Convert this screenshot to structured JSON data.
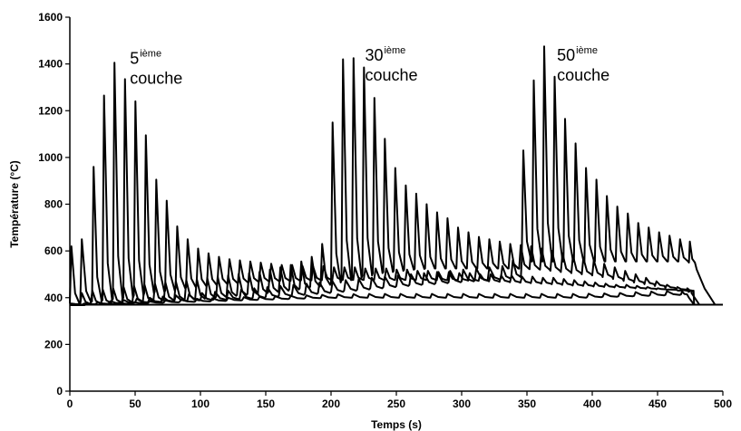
{
  "chart_data": {
    "type": "line",
    "title": "",
    "xlabel": "Temps (s)",
    "ylabel": "Température (°C)",
    "xlim": [
      0,
      500
    ],
    "ylim": [
      0,
      1600
    ],
    "x_ticks": [
      "0",
      "50",
      "100",
      "150",
      "200",
      "250",
      "300",
      "350",
      "400",
      "450",
      "500"
    ],
    "y_ticks": [
      "0",
      "200",
      "400",
      "600",
      "800",
      "1000",
      "1200",
      "1400",
      "1600"
    ],
    "grid": false,
    "legend": "none",
    "line_color": "#000000",
    "annotations": [
      {
        "num": "5",
        "sup": "ième",
        "word": "couche",
        "x": 46,
        "y": 1400
      },
      {
        "num": "30",
        "sup": "ième",
        "word": "couche",
        "x": 226,
        "y": 1415
      },
      {
        "num": "50",
        "sup": "ième",
        "word": "couche",
        "x": 373,
        "y": 1415
      }
    ],
    "series": [
      {
        "peaks": [
          [
            0,
            620,
            375
          ],
          [
            8,
            650,
            380
          ],
          [
            17,
            960,
            385
          ],
          [
            25,
            1265,
            390
          ],
          [
            33,
            1405,
            395
          ],
          [
            41,
            1335,
            400
          ],
          [
            49,
            1240,
            410
          ],
          [
            57,
            1095,
            420
          ],
          [
            65,
            905,
            425
          ],
          [
            73,
            815,
            430
          ],
          [
            81,
            705,
            440
          ],
          [
            89,
            650,
            445
          ],
          [
            97,
            610,
            450
          ],
          [
            105,
            590,
            455
          ],
          [
            113,
            575,
            460
          ],
          [
            121,
            565,
            462
          ],
          [
            129,
            560,
            465
          ],
          [
            137,
            555,
            468
          ],
          [
            145,
            550,
            470
          ],
          [
            153,
            545,
            470
          ],
          [
            161,
            540,
            472
          ],
          [
            169,
            540,
            472
          ],
          [
            177,
            535,
            474
          ],
          [
            185,
            535,
            474
          ],
          [
            193,
            535,
            475
          ],
          [
            201,
            530,
            475
          ],
          [
            209,
            530,
            476
          ],
          [
            217,
            530,
            476
          ],
          [
            225,
            525,
            476
          ],
          [
            233,
            525,
            476
          ],
          [
            241,
            525,
            476
          ],
          [
            249,
            520,
            476
          ],
          [
            257,
            520,
            476
          ],
          [
            265,
            515,
            476
          ],
          [
            273,
            515,
            476
          ],
          [
            281,
            510,
            475
          ],
          [
            289,
            510,
            475
          ],
          [
            297,
            505,
            474
          ],
          [
            305,
            505,
            473
          ],
          [
            313,
            500,
            472
          ],
          [
            321,
            500,
            470
          ],
          [
            329,
            495,
            468
          ],
          [
            337,
            495,
            466
          ],
          [
            345,
            490,
            464
          ],
          [
            353,
            490,
            462
          ],
          [
            361,
            485,
            460
          ],
          [
            369,
            485,
            458
          ],
          [
            377,
            480,
            455
          ],
          [
            385,
            475,
            452
          ],
          [
            393,
            470,
            450
          ],
          [
            401,
            465,
            448
          ],
          [
            409,
            460,
            446
          ],
          [
            417,
            455,
            444
          ],
          [
            425,
            455,
            442
          ],
          [
            433,
            450,
            440
          ],
          [
            441,
            445,
            438
          ],
          [
            449,
            440,
            436
          ],
          [
            457,
            435,
            434
          ],
          [
            465,
            430,
            432
          ],
          [
            473,
            425,
            430
          ]
        ],
        "end": [
          [
            478,
            370
          ]
        ]
      },
      {
        "peaks": [
          [
            0,
            375,
            372
          ],
          [
            8,
            420,
            374
          ],
          [
            16,
            430,
            376
          ],
          [
            24,
            435,
            378
          ],
          [
            32,
            440,
            380
          ],
          [
            40,
            445,
            382
          ],
          [
            48,
            450,
            384
          ],
          [
            56,
            455,
            386
          ],
          [
            64,
            460,
            388
          ],
          [
            72,
            465,
            390
          ],
          [
            80,
            470,
            392
          ],
          [
            88,
            475,
            394
          ],
          [
            96,
            480,
            396
          ],
          [
            104,
            485,
            400
          ],
          [
            112,
            490,
            404
          ],
          [
            120,
            495,
            408
          ],
          [
            128,
            500,
            412
          ],
          [
            136,
            505,
            416
          ],
          [
            144,
            510,
            420
          ],
          [
            152,
            520,
            425
          ],
          [
            160,
            530,
            430
          ],
          [
            168,
            540,
            435
          ],
          [
            176,
            555,
            440
          ],
          [
            184,
            575,
            448
          ],
          [
            192,
            630,
            455
          ],
          [
            200,
            1150,
            465
          ],
          [
            208,
            1420,
            475
          ],
          [
            216,
            1425,
            485
          ],
          [
            224,
            1385,
            495
          ],
          [
            232,
            1255,
            505
          ],
          [
            240,
            1080,
            510
          ],
          [
            248,
            955,
            515
          ],
          [
            256,
            880,
            520
          ],
          [
            264,
            845,
            523
          ],
          [
            272,
            800,
            525
          ],
          [
            280,
            765,
            525
          ],
          [
            288,
            740,
            525
          ],
          [
            296,
            700,
            525
          ],
          [
            304,
            680,
            525
          ],
          [
            312,
            660,
            525
          ],
          [
            320,
            650,
            525
          ],
          [
            328,
            640,
            525
          ],
          [
            336,
            630,
            525
          ],
          [
            344,
            625,
            524
          ],
          [
            352,
            620,
            522
          ],
          [
            360,
            610,
            520
          ],
          [
            368,
            600,
            515
          ],
          [
            376,
            590,
            510
          ],
          [
            384,
            580,
            505
          ],
          [
            392,
            570,
            500
          ],
          [
            400,
            560,
            495
          ],
          [
            408,
            545,
            488
          ],
          [
            416,
            530,
            480
          ],
          [
            424,
            515,
            472
          ],
          [
            432,
            500,
            465
          ],
          [
            440,
            485,
            458
          ],
          [
            448,
            470,
            450
          ],
          [
            456,
            455,
            442
          ],
          [
            464,
            445,
            435
          ],
          [
            472,
            440,
            430
          ]
        ],
        "end": [
          [
            476,
            420
          ],
          [
            482,
            370
          ]
        ]
      },
      {
        "peaks": [
          [
            0,
            370,
            370
          ],
          [
            10,
            375,
            372
          ],
          [
            20,
            380,
            374
          ],
          [
            30,
            385,
            376
          ],
          [
            40,
            390,
            378
          ],
          [
            50,
            395,
            380
          ],
          [
            60,
            400,
            382
          ],
          [
            70,
            405,
            384
          ],
          [
            80,
            410,
            386
          ],
          [
            90,
            415,
            388
          ],
          [
            100,
            420,
            390
          ],
          [
            110,
            425,
            392
          ],
          [
            120,
            430,
            394
          ],
          [
            130,
            435,
            396
          ],
          [
            140,
            440,
            400
          ],
          [
            150,
            445,
            404
          ],
          [
            160,
            450,
            408
          ],
          [
            170,
            455,
            412
          ],
          [
            180,
            460,
            416
          ],
          [
            190,
            465,
            420
          ],
          [
            200,
            470,
            425
          ],
          [
            210,
            475,
            430
          ],
          [
            220,
            480,
            435
          ],
          [
            230,
            485,
            440
          ],
          [
            240,
            490,
            445
          ],
          [
            250,
            495,
            450
          ],
          [
            260,
            500,
            455
          ],
          [
            270,
            505,
            458
          ],
          [
            280,
            510,
            462
          ],
          [
            290,
            515,
            466
          ],
          [
            300,
            520,
            470
          ],
          [
            310,
            525,
            474
          ],
          [
            320,
            530,
            478
          ],
          [
            330,
            535,
            482
          ],
          [
            338,
            560,
            488
          ],
          [
            346,
            1030,
            555
          ],
          [
            354,
            1330,
            555
          ],
          [
            362,
            1475,
            555
          ],
          [
            370,
            1345,
            555
          ],
          [
            378,
            1165,
            555
          ],
          [
            386,
            1060,
            555
          ],
          [
            394,
            955,
            555
          ],
          [
            402,
            905,
            555
          ],
          [
            410,
            835,
            555
          ],
          [
            418,
            790,
            555
          ],
          [
            426,
            760,
            555
          ],
          [
            434,
            720,
            555
          ],
          [
            442,
            700,
            555
          ],
          [
            450,
            680,
            555
          ],
          [
            458,
            665,
            555
          ],
          [
            466,
            650,
            555
          ],
          [
            474,
            640,
            550
          ]
        ],
        "end": [
          [
            480,
            520
          ],
          [
            486,
            440
          ],
          [
            494,
            370
          ]
        ]
      },
      {
        "peaks": [
          [
            0,
            368,
            368
          ],
          [
            12,
            372,
            370
          ],
          [
            24,
            375,
            372
          ],
          [
            36,
            378,
            374
          ],
          [
            48,
            380,
            376
          ],
          [
            60,
            384,
            378
          ],
          [
            72,
            388,
            380
          ],
          [
            84,
            392,
            382
          ],
          [
            96,
            395,
            384
          ],
          [
            108,
            398,
            386
          ],
          [
            120,
            400,
            388
          ],
          [
            132,
            402,
            390
          ],
          [
            144,
            404,
            392
          ],
          [
            156,
            406,
            394
          ],
          [
            168,
            408,
            396
          ],
          [
            180,
            410,
            398
          ],
          [
            192,
            412,
            399
          ],
          [
            204,
            414,
            400
          ],
          [
            216,
            415,
            400
          ],
          [
            228,
            416,
            400
          ],
          [
            240,
            416,
            400
          ],
          [
            252,
            416,
            400
          ],
          [
            264,
            416,
            400
          ],
          [
            276,
            416,
            400
          ],
          [
            288,
            416,
            400
          ],
          [
            300,
            416,
            400
          ],
          [
            312,
            416,
            400
          ],
          [
            324,
            416,
            400
          ],
          [
            336,
            416,
            400
          ],
          [
            348,
            416,
            400
          ],
          [
            360,
            416,
            400
          ],
          [
            372,
            416,
            400
          ],
          [
            384,
            416,
            400
          ],
          [
            396,
            417,
            402
          ],
          [
            408,
            418,
            404
          ],
          [
            420,
            420,
            406
          ],
          [
            432,
            424,
            408
          ],
          [
            444,
            426,
            410
          ],
          [
            456,
            428,
            412
          ],
          [
            468,
            426,
            414
          ]
        ],
        "end": [
          [
            474,
            400
          ],
          [
            478,
            370
          ]
        ]
      }
    ],
    "baseline": [
      [
        0,
        370
      ],
      [
        500,
        370
      ]
    ]
  }
}
